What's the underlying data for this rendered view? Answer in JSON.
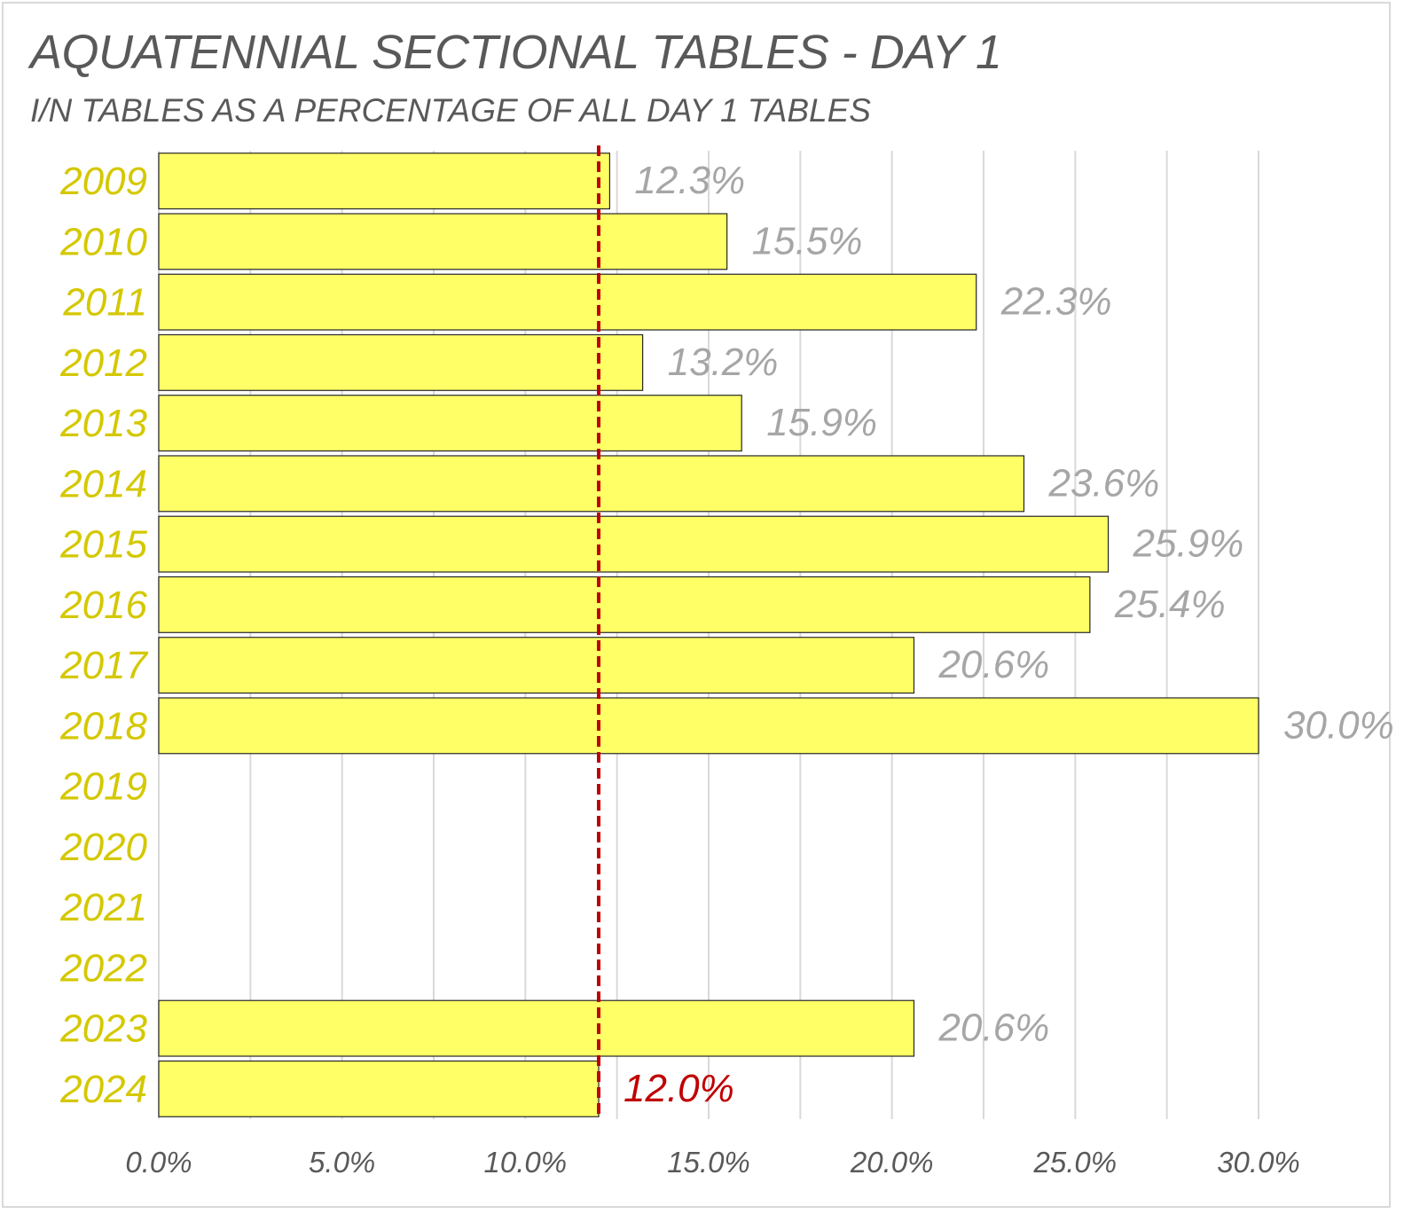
{
  "chart_data": {
    "type": "bar",
    "orientation": "horizontal",
    "title": "AQUATENNIAL SECTIONAL TABLES - DAY 1",
    "subtitle": "I/N TABLES AS A PERCENTAGE OF ALL DAY 1 TABLES",
    "categories": [
      "2009",
      "2010",
      "2011",
      "2012",
      "2013",
      "2014",
      "2015",
      "2016",
      "2017",
      "2018",
      "2019",
      "2020",
      "2021",
      "2022",
      "2023",
      "2024"
    ],
    "values": [
      12.3,
      15.5,
      22.3,
      13.2,
      15.9,
      23.6,
      25.9,
      25.4,
      20.6,
      30.0,
      null,
      null,
      null,
      null,
      20.6,
      12.0
    ],
    "data_labels": [
      "12.3%",
      "15.5%",
      "22.3%",
      "13.2%",
      "15.9%",
      "23.6%",
      "25.9%",
      "25.4%",
      "20.6%",
      "30.0%",
      "",
      "",
      "",
      "",
      "20.6%",
      "12.0%"
    ],
    "xlim": [
      0,
      30
    ],
    "x_ticks": [
      0,
      5,
      10,
      15,
      20,
      25,
      30
    ],
    "x_tick_labels": [
      "0.0%",
      "5.0%",
      "10.0%",
      "15.0%",
      "20.0%",
      "25.0%",
      "30.0%"
    ],
    "reference_line": {
      "value": 12.0,
      "style": "dashed",
      "color": "#c00000"
    },
    "highlight_label_index": 15,
    "grid": "vertical",
    "legend": "none",
    "colors": {
      "bar_fill": "#ffff66",
      "bar_stroke": "#262626",
      "category_label": "#d4c800",
      "data_label": "#a6a6a6",
      "highlight_label": "#c00000",
      "tick_label": "#595959",
      "gridline": "#d9d9d9"
    }
  }
}
